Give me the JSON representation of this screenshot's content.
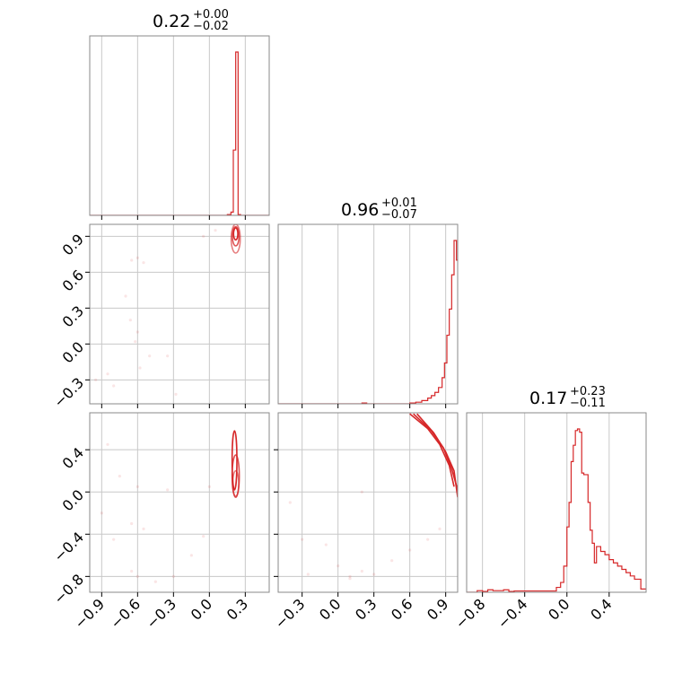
{
  "chart_data": {
    "type": "corner",
    "color": "#d62728",
    "variables": [
      {
        "index": 0,
        "range": [
          -1.0,
          0.5
        ],
        "ticks": [
          -0.9,
          -0.6,
          -0.3,
          0.0,
          0.3
        ],
        "tick_labels": [
          "−0.9",
          "−0.6",
          "−0.3",
          "0.0",
          "0.3"
        ]
      },
      {
        "index": 1,
        "range": [
          -0.5,
          1.0
        ],
        "ticks": [
          -0.3,
          0.0,
          0.3,
          0.6,
          0.9
        ],
        "tick_labels": [
          "−0.3",
          "0.0",
          "0.3",
          "0.6",
          "0.9"
        ]
      },
      {
        "index": 2,
        "range": [
          -0.95,
          0.75
        ],
        "ticks": [
          -0.8,
          -0.4,
          0.0,
          0.4
        ],
        "tick_labels": [
          "−0.8",
          "−0.4",
          "0.0",
          "0.4"
        ]
      }
    ],
    "titles": [
      {
        "median": "0.22",
        "plus": "+0.00",
        "minus": "−0.02"
      },
      {
        "median": "0.96",
        "plus": "+0.01",
        "minus": "−0.07"
      },
      {
        "median": "0.17",
        "plus": "+0.23",
        "minus": "−0.11"
      }
    ],
    "histograms": [
      {
        "x_bins": [
          -1.0,
          0.5
        ],
        "bins": [
          {
            "x0": -1.0,
            "x1": 0.15,
            "h": 0.0
          },
          {
            "x0": 0.15,
            "x1": 0.18,
            "h": 0.005
          },
          {
            "x0": 0.18,
            "x1": 0.2,
            "h": 0.02
          },
          {
            "x0": 0.2,
            "x1": 0.22,
            "h": 0.4
          },
          {
            "x0": 0.22,
            "x1": 0.24,
            "h": 1.0
          },
          {
            "x0": 0.24,
            "x1": 0.26,
            "h": 0.005
          },
          {
            "x0": 0.26,
            "x1": 0.5,
            "h": 0.0
          }
        ]
      },
      {
        "bins": [
          {
            "x0": -0.5,
            "x1": 0.2,
            "h": 0.0
          },
          {
            "x0": 0.2,
            "x1": 0.24,
            "h": 0.005
          },
          {
            "x0": 0.24,
            "x1": 0.6,
            "h": 0.0
          },
          {
            "x0": 0.6,
            "x1": 0.65,
            "h": 0.005
          },
          {
            "x0": 0.65,
            "x1": 0.7,
            "h": 0.01
          },
          {
            "x0": 0.7,
            "x1": 0.75,
            "h": 0.02
          },
          {
            "x0": 0.75,
            "x1": 0.78,
            "h": 0.035
          },
          {
            "x0": 0.78,
            "x1": 0.81,
            "h": 0.05
          },
          {
            "x0": 0.81,
            "x1": 0.84,
            "h": 0.07
          },
          {
            "x0": 0.84,
            "x1": 0.87,
            "h": 0.1
          },
          {
            "x0": 0.87,
            "x1": 0.89,
            "h": 0.16
          },
          {
            "x0": 0.89,
            "x1": 0.91,
            "h": 0.25
          },
          {
            "x0": 0.91,
            "x1": 0.93,
            "h": 0.42
          },
          {
            "x0": 0.93,
            "x1": 0.95,
            "h": 0.58
          },
          {
            "x0": 0.95,
            "x1": 0.97,
            "h": 0.79
          },
          {
            "x0": 0.97,
            "x1": 0.99,
            "h": 1.0
          },
          {
            "x0": 0.99,
            "x1": 1.0,
            "h": 0.88
          }
        ]
      },
      {
        "bins": [
          {
            "x0": -0.95,
            "x1": -0.85,
            "h": 0.0
          },
          {
            "x0": -0.85,
            "x1": -0.8,
            "h": 0.01
          },
          {
            "x0": -0.8,
            "x1": -0.75,
            "h": 0.005
          },
          {
            "x0": -0.75,
            "x1": -0.7,
            "h": 0.015
          },
          {
            "x0": -0.7,
            "x1": -0.6,
            "h": 0.01
          },
          {
            "x0": -0.6,
            "x1": -0.55,
            "h": 0.015
          },
          {
            "x0": -0.55,
            "x1": -0.5,
            "h": 0.005
          },
          {
            "x0": -0.5,
            "x1": -0.1,
            "h": 0.008
          },
          {
            "x0": -0.1,
            "x1": -0.06,
            "h": 0.03
          },
          {
            "x0": -0.06,
            "x1": -0.03,
            "h": 0.06
          },
          {
            "x0": -0.03,
            "x1": 0.0,
            "h": 0.16
          },
          {
            "x0": 0.0,
            "x1": 0.02,
            "h": 0.4
          },
          {
            "x0": 0.02,
            "x1": 0.04,
            "h": 0.55
          },
          {
            "x0": 0.04,
            "x1": 0.06,
            "h": 0.8
          },
          {
            "x0": 0.06,
            "x1": 0.08,
            "h": 0.9
          },
          {
            "x0": 0.08,
            "x1": 0.1,
            "h": 0.99
          },
          {
            "x0": 0.1,
            "x1": 0.12,
            "h": 1.0
          },
          {
            "x0": 0.12,
            "x1": 0.14,
            "h": 0.98
          },
          {
            "x0": 0.14,
            "x1": 0.16,
            "h": 0.73
          },
          {
            "x0": 0.16,
            "x1": 0.2,
            "h": 0.72
          },
          {
            "x0": 0.2,
            "x1": 0.22,
            "h": 0.55
          },
          {
            "x0": 0.22,
            "x1": 0.24,
            "h": 0.38
          },
          {
            "x0": 0.24,
            "x1": 0.26,
            "h": 0.3
          },
          {
            "x0": 0.26,
            "x1": 0.28,
            "h": 0.18
          },
          {
            "x0": 0.28,
            "x1": 0.32,
            "h": 0.28
          },
          {
            "x0": 0.32,
            "x1": 0.36,
            "h": 0.25
          },
          {
            "x0": 0.36,
            "x1": 0.4,
            "h": 0.23
          },
          {
            "x0": 0.4,
            "x1": 0.44,
            "h": 0.2
          },
          {
            "x0": 0.44,
            "x1": 0.48,
            "h": 0.18
          },
          {
            "x0": 0.48,
            "x1": 0.52,
            "h": 0.16
          },
          {
            "x0": 0.52,
            "x1": 0.56,
            "h": 0.14
          },
          {
            "x0": 0.56,
            "x1": 0.6,
            "h": 0.12
          },
          {
            "x0": 0.6,
            "x1": 0.64,
            "h": 0.1
          },
          {
            "x0": 0.64,
            "x1": 0.7,
            "h": 0.08
          },
          {
            "x0": 0.7,
            "x1": 0.75,
            "h": 0.02
          }
        ]
      }
    ],
    "scatter": {
      "1_0": [
        [
          -0.6,
          0.72
        ],
        [
          -0.65,
          0.7
        ],
        [
          -0.55,
          0.68
        ],
        [
          -0.7,
          0.4
        ],
        [
          -0.66,
          0.2
        ],
        [
          -0.6,
          0.1
        ],
        [
          -0.62,
          0.02
        ],
        [
          -0.5,
          -0.1
        ],
        [
          -0.58,
          -0.2
        ],
        [
          -0.8,
          -0.35
        ],
        [
          -0.85,
          -0.25
        ],
        [
          -0.95,
          -0.3
        ],
        [
          -0.28,
          -0.42
        ],
        [
          -0.35,
          -0.1
        ],
        [
          -0.05,
          0.9
        ],
        [
          0.05,
          0.95
        ]
      ],
      "2_0": [
        [
          -0.85,
          0.45
        ],
        [
          -0.75,
          0.15
        ],
        [
          -0.6,
          0.05
        ],
        [
          -0.65,
          -0.3
        ],
        [
          -0.55,
          -0.35
        ],
        [
          -0.8,
          -0.45
        ],
        [
          -0.65,
          -0.75
        ],
        [
          -0.6,
          -0.8
        ],
        [
          -0.45,
          -0.85
        ],
        [
          -0.3,
          -0.8
        ],
        [
          -0.15,
          -0.6
        ],
        [
          -0.05,
          -0.42
        ],
        [
          0.0,
          0.05
        ],
        [
          -0.9,
          -0.2
        ],
        [
          -0.35,
          0.02
        ]
      ],
      "2_1": [
        [
          -0.4,
          -0.1
        ],
        [
          -0.3,
          -0.45
        ],
        [
          -0.1,
          -0.5
        ],
        [
          0.0,
          -0.7
        ],
        [
          0.1,
          -0.8
        ],
        [
          0.2,
          -0.75
        ],
        [
          0.3,
          -0.78
        ],
        [
          0.45,
          -0.65
        ],
        [
          0.6,
          -0.55
        ],
        [
          0.75,
          -0.45
        ],
        [
          0.85,
          -0.35
        ],
        [
          0.1,
          -0.82
        ],
        [
          0.2,
          0.0
        ],
        [
          -0.25,
          -0.78
        ]
      ]
    },
    "contours": {
      "1_0": [
        {
          "cx": 0.22,
          "cy": 0.92,
          "rx": 0.018,
          "ry": 0.05
        },
        {
          "cx": 0.22,
          "cy": 0.9,
          "rx": 0.028,
          "ry": 0.08
        },
        {
          "cx": 0.22,
          "cy": 0.88,
          "rx": 0.038,
          "ry": 0.12
        }
      ],
      "2_0": [
        {
          "cx": 0.21,
          "cy": 0.3,
          "rx": 0.02,
          "ry": 0.28
        },
        {
          "cx": 0.22,
          "cy": 0.15,
          "rx": 0.03,
          "ry": 0.2
        },
        {
          "cx": 0.22,
          "cy": 0.08,
          "rx": 0.025,
          "ry": 0.12
        }
      ],
      "2_1_arcs": [
        [
          [
            0.6,
            0.74
          ],
          [
            0.75,
            0.6
          ],
          [
            0.85,
            0.45
          ],
          [
            0.93,
            0.25
          ],
          [
            0.97,
            0.05
          ]
        ],
        [
          [
            0.63,
            0.74
          ],
          [
            0.78,
            0.58
          ],
          [
            0.88,
            0.42
          ],
          [
            0.95,
            0.22
          ],
          [
            1.0,
            0.02
          ]
        ],
        [
          [
            0.66,
            0.74
          ],
          [
            0.8,
            0.56
          ],
          [
            0.9,
            0.38
          ],
          [
            0.97,
            0.2
          ],
          [
            1.0,
            -0.05
          ]
        ]
      ]
    }
  }
}
